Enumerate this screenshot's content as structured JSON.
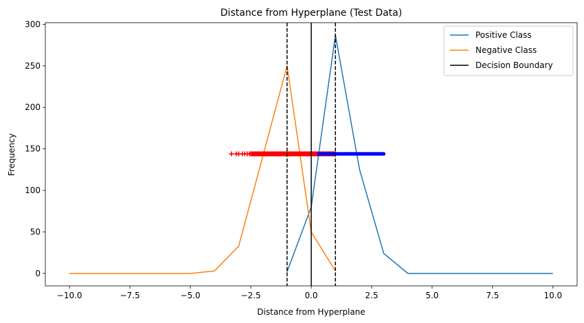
{
  "chart_data": {
    "type": "line",
    "title": "Distance from Hyperplane (Test Data)",
    "xlabel": "Distance from Hyperplane",
    "ylabel": "Frequency",
    "xlim": [
      -11,
      11
    ],
    "ylim": [
      -15,
      302
    ],
    "xticks": [
      -10,
      -7.5,
      -5,
      -2.5,
      0,
      2.5,
      5,
      7.5,
      10
    ],
    "xtick_labels": [
      "−10.0",
      "−7.5",
      "−5.0",
      "−2.5",
      "0.0",
      "2.5",
      "5.0",
      "7.5",
      "10.0"
    ],
    "yticks": [
      0,
      50,
      100,
      150,
      200,
      250,
      300
    ],
    "ytick_labels": [
      "0",
      "50",
      "100",
      "150",
      "200",
      "250",
      "300"
    ],
    "grid": false,
    "legend_position": "top-right",
    "series": [
      {
        "name": "Positive Class",
        "color": "#1f77b4",
        "x": [
          -1,
          0,
          1,
          2,
          3,
          4,
          10
        ],
        "y": [
          2,
          80,
          287,
          125,
          24,
          0,
          0
        ]
      },
      {
        "name": "Negative Class",
        "color": "#ff7f0e",
        "x": [
          -10,
          -5,
          -4,
          -3,
          -1,
          0,
          1
        ],
        "y": [
          0,
          0,
          3,
          33,
          250,
          50,
          3
        ]
      }
    ],
    "decision_boundary": {
      "name": "Decision Boundary",
      "x": 0,
      "color": "#000000"
    },
    "margins": {
      "x": [
        -1,
        1
      ],
      "style": "dashed",
      "color": "#000000"
    },
    "scatter_strip": {
      "y": 144,
      "negative": {
        "marker": "plus",
        "color": "#ff0000",
        "x_range": [
          -3.3,
          1.0
        ]
      },
      "positive": {
        "marker": "dot",
        "color": "#0000ff",
        "x_range": [
          0.3,
          3.0
        ]
      }
    }
  }
}
